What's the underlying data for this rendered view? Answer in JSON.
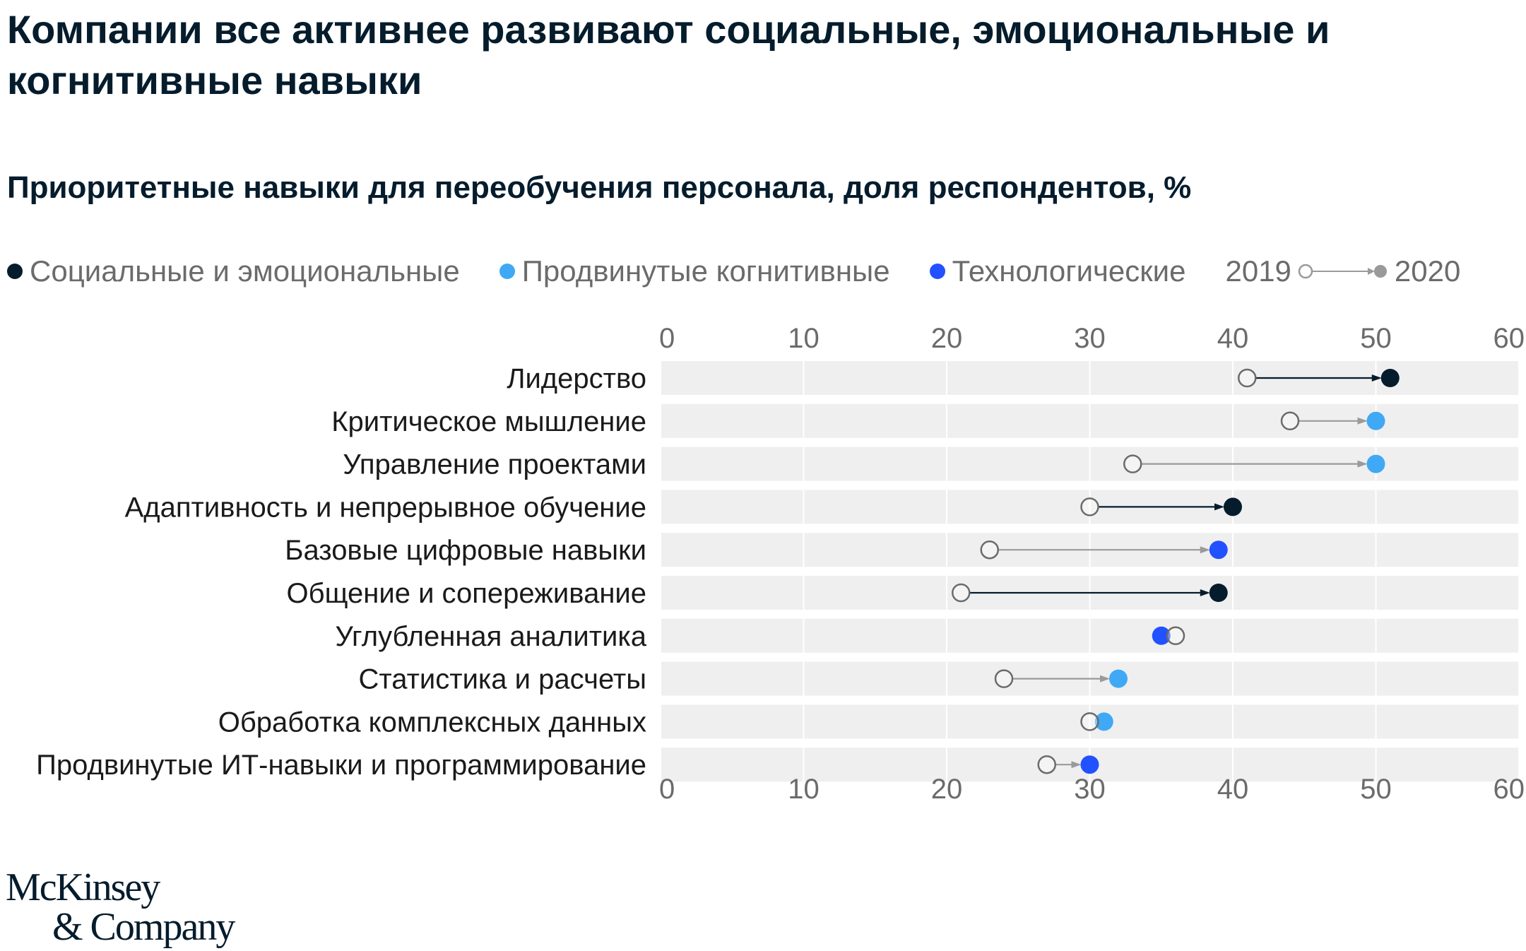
{
  "title": "Компании все активнее развивают социальные, эмоциональные и когнитивные навыки",
  "subtitle": "Приоритетные навыки для переобучения персонала, доля респондентов, %",
  "legend": {
    "categories": [
      {
        "label": "Социальные и эмоциональные",
        "color": "#051c2c"
      },
      {
        "label": "Продвинутые когнитивные",
        "color": "#3fa9f5"
      },
      {
        "label": "Технологические",
        "color": "#2251ff"
      }
    ],
    "year_start": "2019",
    "year_end": "2020"
  },
  "logo": {
    "line1": "McKinsey",
    "line2": "& Company"
  },
  "chart_data": {
    "type": "dumbbell",
    "xlim": [
      0,
      60
    ],
    "ticks": [
      "0",
      "10",
      "20",
      "30",
      "40",
      "50",
      "60"
    ],
    "tick_values": [
      0,
      10,
      20,
      30,
      40,
      50,
      60
    ],
    "grid": true,
    "rows": [
      {
        "label": "Лидерство",
        "v2019": 41,
        "v2020": 51,
        "category": 0
      },
      {
        "label": "Критическое мышление",
        "v2019": 44,
        "v2020": 50,
        "category": 1
      },
      {
        "label": "Управление проектами",
        "v2019": 33,
        "v2020": 50,
        "category": 1
      },
      {
        "label": "Адаптивность и непрерывное обучение",
        "v2019": 30,
        "v2020": 40,
        "category": 0
      },
      {
        "label": "Базовые цифровые навыки",
        "v2019": 23,
        "v2020": 39,
        "category": 2
      },
      {
        "label": "Общение и сопереживание",
        "v2019": 21,
        "v2020": 39,
        "category": 0
      },
      {
        "label": "Углубленная аналитика",
        "v2019": 36,
        "v2020": 35,
        "category": 2
      },
      {
        "label": "Статистика и расчеты",
        "v2019": 24,
        "v2020": 32,
        "category": 1
      },
      {
        "label": "Обработка комплексных данных",
        "v2019": 30,
        "v2020": 31,
        "category": 1
      },
      {
        "label": "Продвинутые ИТ-навыки и программирование",
        "v2019": 27,
        "v2020": 30,
        "category": 2
      }
    ]
  }
}
